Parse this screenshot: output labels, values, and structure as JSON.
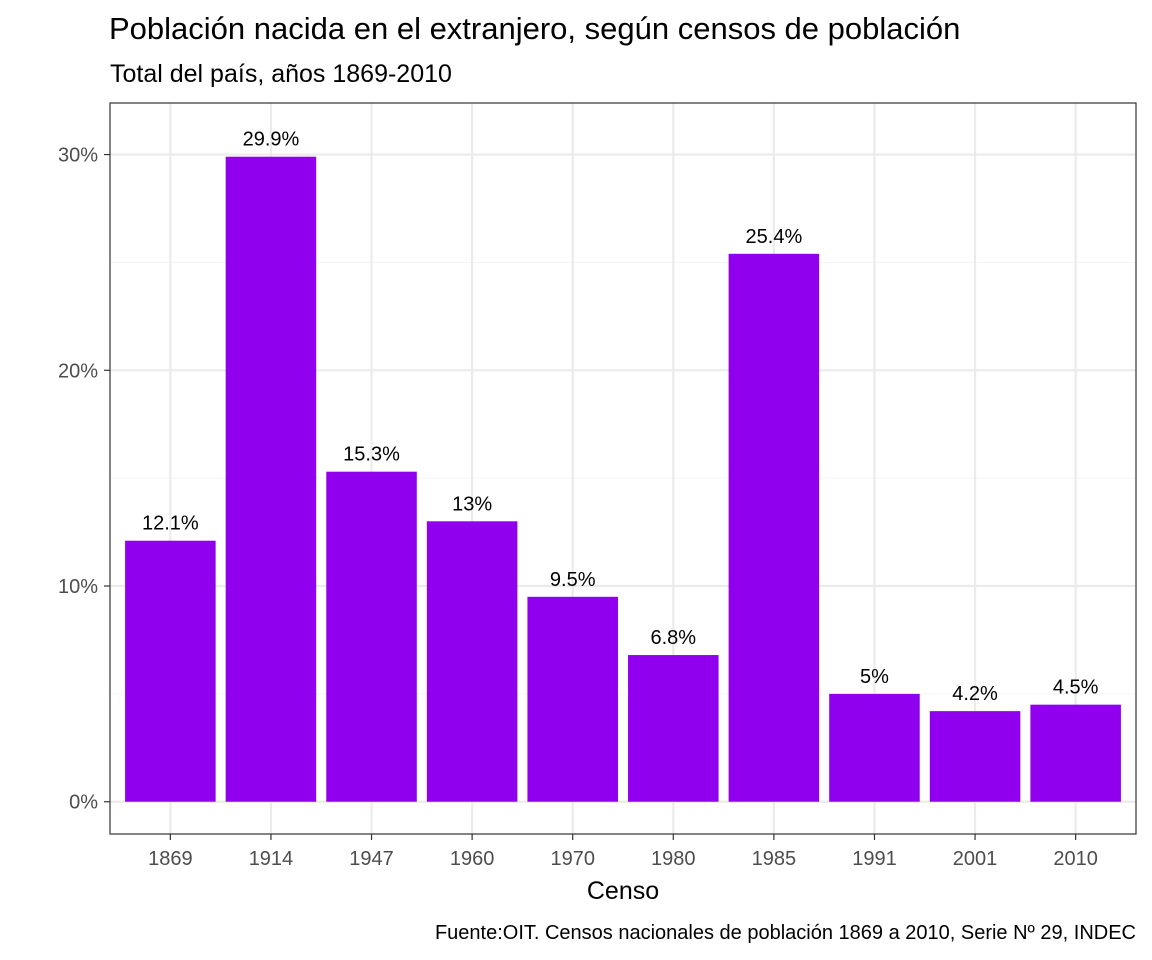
{
  "chart_data": {
    "type": "bar",
    "title": "Población nacida en el extranjero, según censos de población",
    "subtitle": "Total del país, años 1869-2010",
    "xlabel": "Censo",
    "ylabel": "",
    "caption": "Fuente:OIT. Censos nacionales de población 1869 a 2010, Serie Nº 29, INDEC",
    "categories": [
      "1869",
      "1914",
      "1947",
      "1960",
      "1970",
      "1980",
      "1985",
      "1991",
      "2001",
      "2010"
    ],
    "values": [
      12.1,
      29.9,
      15.3,
      13,
      9.5,
      6.8,
      25.4,
      5,
      4.2,
      4.5
    ],
    "data_labels": [
      "12.1%",
      "29.9%",
      "15.3%",
      "13%",
      "9.5%",
      "6.8%",
      "25.4%",
      "5%",
      "4.2%",
      "4.5%"
    ],
    "yticks": [
      0,
      10,
      20,
      30
    ],
    "ytick_labels": [
      "0%",
      "10%",
      "20%",
      "30%"
    ],
    "ylim": [
      -1.495,
      32.39
    ],
    "grid": true,
    "legend": "none",
    "colors": {
      "bar": "#9000EE",
      "panel_border": "#333333",
      "grid_major": "#ebebeb",
      "grid_minor": "#f5f5f5",
      "tick_text": "#4d4d4d"
    }
  }
}
